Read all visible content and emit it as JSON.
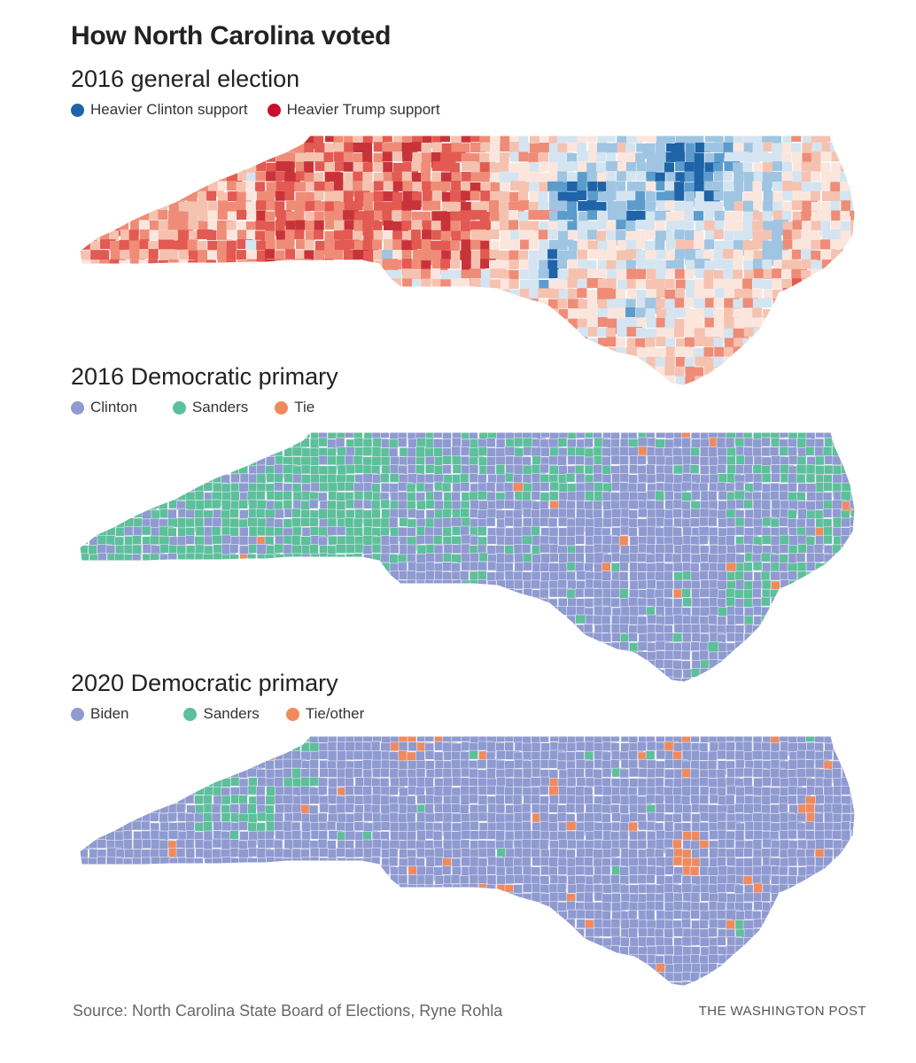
{
  "header": {
    "title": "How North Carolina voted"
  },
  "maps": [
    {
      "id": "general2016",
      "title": "2016 general election",
      "legend": [
        {
          "label": "Heavier Clinton support",
          "color": "#1f63a8"
        },
        {
          "label": "Heavier Trump support",
          "color": "#c8102e"
        }
      ],
      "palette": [
        "#c8333a",
        "#e25a52",
        "#ef8c78",
        "#f6c2b0",
        "#fbe6de",
        "#d4e5f1",
        "#9fc5e2",
        "#5b9ccc",
        "#1f63a8"
      ]
    },
    {
      "id": "dem2016",
      "title": "2016 Democratic primary",
      "legend": [
        {
          "label": "Clinton",
          "color": "#8f9ad0"
        },
        {
          "label": "Sanders",
          "color": "#5cc09a"
        },
        {
          "label": "Tie",
          "color": "#f08a5d"
        }
      ]
    },
    {
      "id": "dem2020",
      "title": "2020 Democratic primary",
      "legend": [
        {
          "label": "Biden",
          "color": "#8f9ad0"
        },
        {
          "label": "Sanders",
          "color": "#5cc09a"
        },
        {
          "label": "Tie/other",
          "color": "#f08a5d"
        }
      ]
    }
  ],
  "footer": {
    "source": "Source: North Carolina State Board of Elections, Ryne Rohla",
    "credit": "THE WASHINGTON POST"
  }
}
